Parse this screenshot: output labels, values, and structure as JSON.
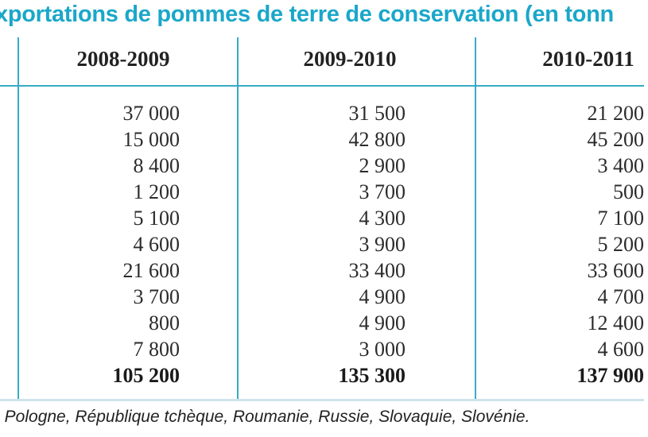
{
  "title": "xportations de pommes de terre de conservation (en tonn",
  "columns": [
    "2008-2009",
    "2009-2010",
    "2010-2011"
  ],
  "rows": [
    [
      "37 000",
      "31 500",
      "21 200"
    ],
    [
      "15 000",
      "42 800",
      "45 200"
    ],
    [
      "8 400",
      "2 900",
      "3 400"
    ],
    [
      "1 200",
      "3 700",
      "500"
    ],
    [
      "5 100",
      "4 300",
      "7 100"
    ],
    [
      "4 600",
      "3 900",
      "5 200"
    ],
    [
      "21 600",
      "33 400",
      "33 600"
    ],
    [
      "3 700",
      "4 900",
      "4 700"
    ],
    [
      "800",
      "4 900",
      "12 400"
    ],
    [
      "7 800",
      "3 000",
      "4 600"
    ]
  ],
  "totals": [
    "105 200",
    "135 300",
    "137 900"
  ],
  "footnote": ", Pologne, République tchèque, Roumanie, Russie, Slovaquie, Slovénie.",
  "colors": {
    "accent": "#36abc6",
    "title": "#1aa7c9"
  }
}
